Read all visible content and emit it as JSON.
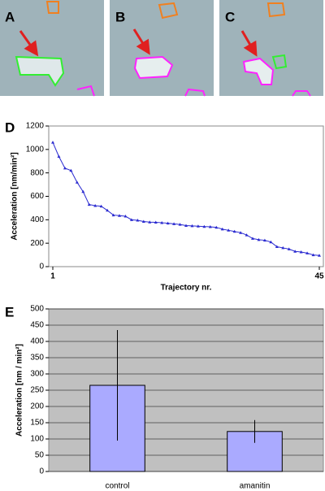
{
  "panel_labels": [
    "A",
    "B",
    "C"
  ],
  "chart_data": [
    {
      "type": "line",
      "panel_label": "D",
      "ylabel": "Acceleration [nm/min²]",
      "xlabel": "Trajectory nr.",
      "x": [
        1,
        2,
        3,
        4,
        5,
        6,
        7,
        8,
        9,
        10,
        11,
        12,
        13,
        14,
        15,
        16,
        17,
        18,
        19,
        20,
        21,
        22,
        23,
        24,
        25,
        26,
        27,
        28,
        29,
        30,
        31,
        32,
        33,
        34,
        35,
        36,
        37,
        38,
        39,
        40,
        41,
        42,
        43,
        44,
        45
      ],
      "series": [
        {
          "color": "#2a2ad0",
          "values": [
            1060,
            940,
            840,
            820,
            720,
            640,
            530,
            520,
            515,
            480,
            440,
            435,
            430,
            400,
            395,
            385,
            380,
            378,
            375,
            370,
            365,
            360,
            350,
            348,
            345,
            342,
            340,
            335,
            320,
            310,
            300,
            290,
            270,
            240,
            230,
            225,
            210,
            170,
            160,
            150,
            130,
            125,
            115,
            100,
            95
          ]
        }
      ],
      "xlim": [
        1,
        45
      ],
      "xticks": [
        1,
        45
      ],
      "ylim": [
        0,
        1200
      ],
      "yticks": [
        0,
        200,
        400,
        600,
        800,
        1000,
        1200
      ],
      "grid": false
    },
    {
      "type": "bar",
      "panel_label": "E",
      "ylabel": "Acceleration [nm / min²]",
      "categories": [
        "control",
        "amanitin"
      ],
      "values": [
        265,
        123
      ],
      "errors": [
        170,
        35
      ],
      "color": "#aaaaff",
      "ylim": [
        0,
        500
      ],
      "yticks": [
        0,
        50,
        100,
        150,
        200,
        250,
        300,
        350,
        400,
        450,
        500
      ],
      "grid": true
    }
  ]
}
